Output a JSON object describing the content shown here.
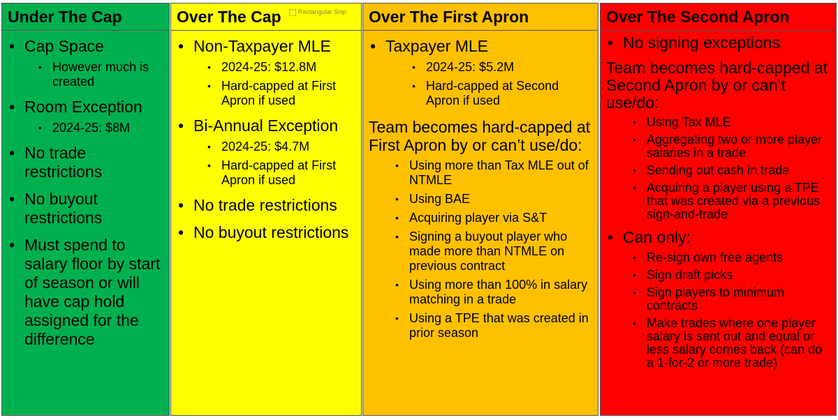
{
  "columns": [
    {
      "title": "Under The Cap",
      "items": [
        {
          "text": "Cap Space",
          "sub": [
            "However much is created"
          ]
        },
        {
          "text": "Room Exception",
          "sub": [
            "2024-25: $8M"
          ]
        },
        {
          "text": "No trade restrictions",
          "sub": []
        },
        {
          "text": "No buyout restrictions",
          "sub": []
        },
        {
          "text": "Must spend to salary floor by start of season or will have cap hold assigned for the difference",
          "sub": []
        }
      ]
    },
    {
      "title": "Over The Cap",
      "items": [
        {
          "text": "Non-Taxpayer MLE",
          "sub": [
            "2024-25: $12.8M",
            "Hard-capped at First Apron if used"
          ]
        },
        {
          "text": "Bi-Annual Exception",
          "sub": [
            "2024-25: $4.7M",
            "Hard-capped at First Apron if used"
          ]
        },
        {
          "text": "No trade restrictions",
          "sub": []
        },
        {
          "text": "No buyout restrictions",
          "sub": []
        }
      ]
    },
    {
      "title": "Over The First Apron",
      "items": [
        {
          "text": "Taxpayer MLE",
          "sub": [
            "2024-25: $5.2M",
            "Hard-capped at Second Apron if used"
          ]
        }
      ],
      "para": "Team becomes hard-capped at First Apron by or can’t use/do:",
      "para_items": [
        "Using more than Tax MLE out of NTMLE",
        "Using BAE",
        "Acquiring player via S&T",
        "Signing a buyout player who made more than NTMLE on previous contract",
        "Using more than 100% in salary matching in a trade",
        "Using a TPE that was created in prior season"
      ]
    },
    {
      "title": "Over The Second Apron",
      "items": [
        {
          "text": "No signing exceptions",
          "sub": []
        }
      ],
      "para": "Team becomes hard-capped at Second Apron by or can’t use/do:",
      "para_items": [
        "Using Tax MLE",
        "Aggregating two or more player salaries in a trade",
        "Sending out cash in trade",
        "Acquiring a player using a TPE that was created via a previous sign-and-trade"
      ],
      "can_only": "Can only:",
      "can_only_items": [
        "Re-sign own free agents",
        "Sign draft picks",
        "Sign players to minimum contracts",
        "Make trades where one player salary is sent out and equal or less salary comes back (can do a 1-for-2 or more trade)"
      ]
    }
  ],
  "overlay_label": "Rectangular Snip"
}
